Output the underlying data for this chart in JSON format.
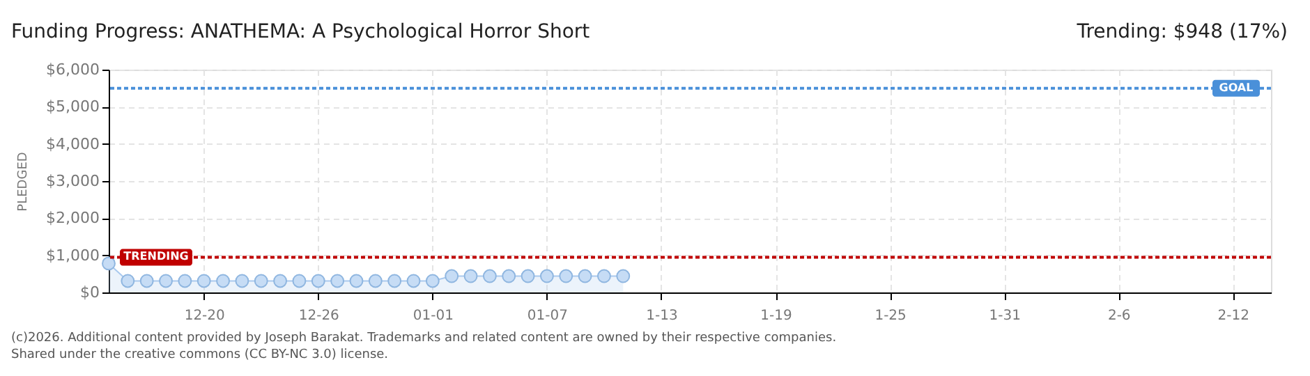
{
  "chart_data": {
    "type": "area",
    "title": "Funding Progress: ANATHEMA: A Psychological Horror Short",
    "subtitle": "Trending: $948 (17%)",
    "ylabel": "PLEDGED",
    "x": [
      "2025-12-15",
      "2025-12-16",
      "2025-12-17",
      "2025-12-18",
      "2025-12-19",
      "2025-12-20",
      "2025-12-21",
      "2025-12-22",
      "2025-12-23",
      "2025-12-24",
      "2025-12-25",
      "2025-12-26",
      "2025-12-27",
      "2025-12-28",
      "2025-12-29",
      "2025-12-30",
      "2025-12-31",
      "2026-01-01",
      "2026-01-02",
      "2026-01-03",
      "2026-01-04",
      "2026-01-05",
      "2026-01-06",
      "2026-01-07",
      "2026-01-08",
      "2026-01-09",
      "2026-01-10",
      "2026-01-11"
    ],
    "series": [
      {
        "color": "#a9c9ee",
        "values": [
          780,
          310,
          310,
          310,
          310,
          310,
          310,
          310,
          310,
          310,
          310,
          310,
          310,
          310,
          310,
          310,
          310,
          310,
          440,
          440,
          440,
          440,
          440,
          440,
          440,
          440,
          440,
          440
        ]
      }
    ],
    "xlim": [
      "2025-12-15",
      "2026-02-14"
    ],
    "xticks": [
      {
        "value": "2025-12-20",
        "label": "12-20"
      },
      {
        "value": "2025-12-26",
        "label": "12-26"
      },
      {
        "value": "2026-01-01",
        "label": "01-01"
      },
      {
        "value": "2026-01-07",
        "label": "01-07"
      },
      {
        "value": "2026-01-13",
        "label": "1-13"
      },
      {
        "value": "2026-01-19",
        "label": "1-19"
      },
      {
        "value": "2026-01-25",
        "label": "1-25"
      },
      {
        "value": "2026-01-31",
        "label": "1-31"
      },
      {
        "value": "2026-02-06",
        "label": "2-6"
      },
      {
        "value": "2026-02-12",
        "label": "2-12"
      }
    ],
    "ylim": [
      0,
      6000
    ],
    "yticks": [
      {
        "value": 0,
        "label": "$0"
      },
      {
        "value": 1000,
        "label": "$1,000"
      },
      {
        "value": 2000,
        "label": "$2,000"
      },
      {
        "value": 3000,
        "label": "$3,000"
      },
      {
        "value": 4000,
        "label": "$4,000"
      },
      {
        "value": 5000,
        "label": "$5,000"
      },
      {
        "value": 6000,
        "label": "$6,000"
      }
    ],
    "ref_lines": [
      {
        "axis": "y",
        "value": 5500,
        "label": "GOAL",
        "color": "#4a90d9",
        "line_style": "dotted"
      },
      {
        "axis": "y",
        "value": 948,
        "label": "TRENDING",
        "color": "#c00000",
        "line_style": "dotted"
      }
    ],
    "grid": true,
    "marker": "circle",
    "annotations": [
      "(c)2026. Additional content provided by Joseph Barakat. Trademarks and related content are owned by their respective companies.",
      "Shared under the creative commons (CC BY-NC 3.0) license."
    ]
  }
}
